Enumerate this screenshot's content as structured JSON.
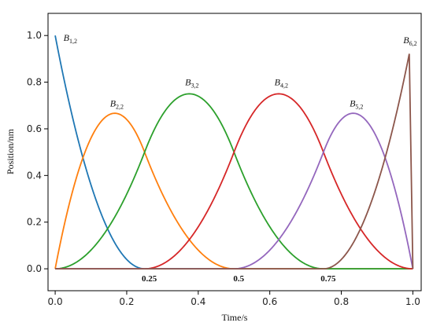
{
  "chart_data": {
    "type": "line",
    "xlabel": "Time/s",
    "ylabel": "Position/nm",
    "xlim": [
      -0.02,
      1.0233
    ],
    "ylim": [
      -0.094,
      1.095
    ],
    "xticks": [
      {
        "value": 0.0,
        "label": "0.0"
      },
      {
        "value": 0.2,
        "label": "0.2"
      },
      {
        "value": 0.4,
        "label": "0.4"
      },
      {
        "value": 0.6,
        "label": "0.6"
      },
      {
        "value": 0.8,
        "label": "0.8"
      },
      {
        "value": 1.0,
        "label": "1.0"
      }
    ],
    "yticks": [
      {
        "value": 0.0,
        "label": "0.0"
      },
      {
        "value": 0.2,
        "label": "0.2"
      },
      {
        "value": 0.4,
        "label": "0.4"
      },
      {
        "value": 0.6,
        "label": "0.6"
      },
      {
        "value": 0.8,
        "label": "0.8"
      },
      {
        "value": 1.0,
        "label": "1.0"
      }
    ],
    "grid": false,
    "knots": [
      0,
      0,
      0,
      0.25,
      0.5,
      0.75,
      1,
      1,
      1
    ],
    "knot_annotations": [
      {
        "x": 0.25,
        "text": "0.25"
      },
      {
        "x": 0.5,
        "text": "0.5"
      },
      {
        "x": 0.75,
        "text": "0.75"
      }
    ],
    "series": [
      {
        "base": "B",
        "sub": "1,2",
        "color": "#1f77b4",
        "basis_index": 0,
        "label_at": [
          0.01,
          0.99
        ]
      },
      {
        "base": "B",
        "sub": "2,2",
        "color": "#ff7f0e",
        "basis_index": 1,
        "label_at": [
          0.14,
          0.71
        ]
      },
      {
        "base": "B",
        "sub": "3,2",
        "color": "#2ca02c",
        "basis_index": 2,
        "label_at": [
          0.35,
          0.8
        ]
      },
      {
        "base": "B",
        "sub": "4,2",
        "color": "#d62728",
        "basis_index": 3,
        "label_at": [
          0.6,
          0.8
        ]
      },
      {
        "base": "B",
        "sub": "5,2",
        "color": "#9467bd",
        "basis_index": 4,
        "label_at": [
          0.81,
          0.71
        ]
      },
      {
        "base": "B",
        "sub": "6,2",
        "color": "#8c564b",
        "basis_index": 5,
        "label_at": [
          0.96,
          0.98
        ]
      }
    ],
    "sample_end": 0.99
  }
}
